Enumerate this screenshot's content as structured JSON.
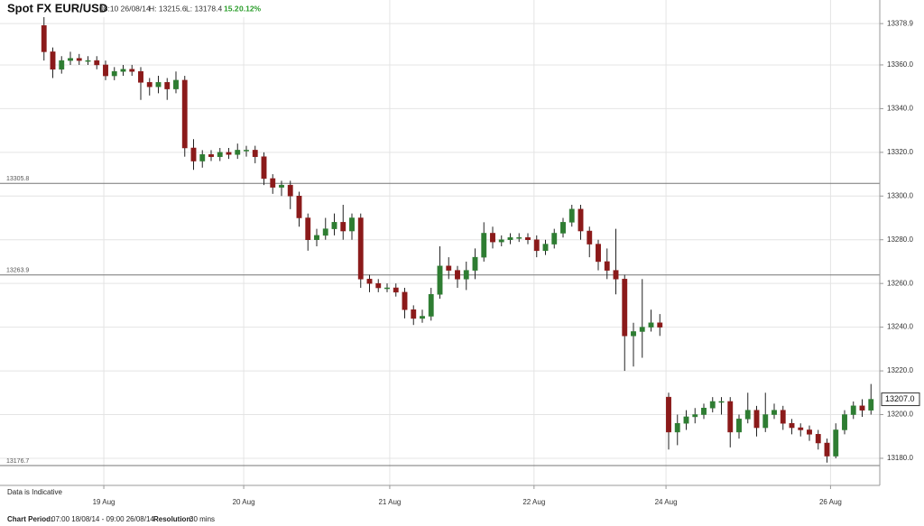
{
  "chart_data": {
    "type": "candlestick",
    "title": "Spot FX EUR/USD",
    "timestamp": "08:10 26/08/14",
    "high_text": "H: 13215.6",
    "low_text": "L: 13178.4",
    "change": "15.2",
    "change_percent": "0.12%",
    "note": "Data is Indicative",
    "footer": {
      "period_label": "Chart Period:",
      "period": "07:00 18/08/14 - 09:00 26/08/14",
      "resolution_label": "Resolution:",
      "resolution": "30 mins"
    },
    "up_color": "#2e7d32",
    "down_color": "#8b1a1a",
    "grid": true,
    "xlim": [
      0,
      100
    ],
    "ylim": [
      13167.6,
      13389.7
    ],
    "xticks": [
      {
        "value": 11.8,
        "label": "19 Aug"
      },
      {
        "value": 27.7,
        "label": "20 Aug"
      },
      {
        "value": 44.3,
        "label": "21 Aug"
      },
      {
        "value": 60.7,
        "label": "22 Aug"
      },
      {
        "value": 75.7,
        "label": "24 Aug"
      },
      {
        "value": 94.4,
        "label": "26 Aug"
      }
    ],
    "yticks": [
      {
        "value": 13180,
        "label": "13180.0"
      },
      {
        "value": 13200,
        "label": "13200.0"
      },
      {
        "value": 13220,
        "label": "13220.0"
      },
      {
        "value": 13240,
        "label": "13240.0"
      },
      {
        "value": 13260,
        "label": "13260.0"
      },
      {
        "value": 13280,
        "label": "13280.0"
      },
      {
        "value": 13300,
        "label": "13300.0"
      },
      {
        "value": 13320,
        "label": "13320.0"
      },
      {
        "value": 13340,
        "label": "13340.0"
      },
      {
        "value": 13360,
        "label": "13360.0"
      },
      13378.9
    ],
    "reference_lines": [
      13305.8,
      13263.9,
      13176.7
    ],
    "last_price": {
      "value": 13207,
      "label": "13207.0"
    },
    "x": [
      5,
      6,
      7,
      8,
      9,
      10,
      11,
      12,
      13,
      14,
      15,
      16,
      17,
      18,
      19,
      20,
      21,
      22,
      23,
      24,
      25,
      26,
      27,
      28,
      29,
      30,
      31,
      32,
      33,
      34,
      35,
      36,
      37,
      38,
      39,
      40,
      41,
      42,
      43,
      44,
      45,
      46,
      47,
      48,
      49,
      50,
      51,
      52,
      53,
      54,
      55,
      56,
      57,
      58,
      59,
      60,
      61,
      62,
      63,
      64,
      65,
      66,
      67,
      68,
      69,
      70,
      71,
      72,
      73,
      74,
      75,
      76,
      77,
      78,
      79,
      80,
      81,
      82,
      83,
      84,
      85,
      86,
      87,
      88,
      89,
      90,
      91,
      92,
      93,
      94,
      95,
      96,
      97,
      98,
      99
    ],
    "open": [
      13378,
      13366,
      13358,
      13362,
      13363,
      13362,
      13362,
      13360,
      13355,
      13357,
      13358,
      13357,
      13352,
      13350,
      13352,
      13349,
      13353,
      13322,
      13316,
      13319,
      13318,
      13320,
      13319,
      13321,
      13321,
      13318,
      13308,
      13304,
      13305,
      13300,
      13290,
      13280,
      13282,
      13285,
      13288,
      13284,
      13290,
      13262,
      13260,
      13258,
      13258,
      13256,
      13248,
      13244,
      13245,
      13255,
      13268,
      13266,
      13262,
      13266,
      13272,
      13283,
      13279,
      13280,
      13281,
      13281,
      13280,
      13275,
      13278,
      13283,
      13288,
      13294,
      13284,
      13278,
      13270,
      13266,
      13262,
      13236,
      13238,
      13240,
      13242,
      13208,
      13192,
      13196,
      13199,
      13200,
      13203,
      13206,
      13206,
      13192,
      13198,
      13202,
      13194,
      13200,
      13202,
      13196,
      13194,
      13193,
      13191,
      13187,
      13181,
      13193,
      13200,
      13204,
      13202
    ],
    "high": [
      13382,
      13368,
      13364,
      13366,
      13365,
      13364,
      13364,
      13362,
      13359,
      13360,
      13360,
      13359,
      13354,
      13355,
      13354,
      13357,
      13355,
      13326,
      13321,
      13321,
      13322,
      13322,
      13324,
      13323,
      13323,
      13320,
      13310,
      13307,
      13307,
      13302,
      13292,
      13285,
      13290,
      13292,
      13296,
      13292,
      13292,
      13264,
      13262,
      13260,
      13260,
      13258,
      13250,
      13248,
      13258,
      13277,
      13272,
      13268,
      13270,
      13276,
      13288,
      13286,
      13282,
      13283,
      13283,
      13283,
      13282,
      13280,
      13285,
      13290,
      13296,
      13296,
      13286,
      13280,
      13276,
      13285,
      13264,
      13242,
      13262,
      13248,
      13246,
      13210,
      13200,
      13202,
      13203,
      13205,
      13208,
      13208,
      13208,
      13200,
      13210,
      13204,
      13210,
      13205,
      13204,
      13198,
      13196,
      13195,
      13193,
      13189,
      13196,
      13202,
      13206,
      13207,
      13214
    ],
    "low": [
      13362,
      13354,
      13356,
      13360,
      13360,
      13360,
      13358,
      13353,
      13353,
      13355,
      13355,
      13344,
      13346,
      13347,
      13344,
      13347,
      13318,
      13312,
      13313,
      13316,
      13316,
      13317,
      13317,
      13318,
      13315,
      13305,
      13301,
      13300,
      13294,
      13286,
      13275,
      13277,
      13280,
      13282,
      13280,
      13280,
      13258,
      13256,
      13256,
      13256,
      13254,
      13244,
      13241,
      13242,
      13243,
      13253,
      13262,
      13258,
      13257,
      13262,
      13270,
      13276,
      13277,
      13278,
      13279,
      13278,
      13272,
      13273,
      13276,
      13281,
      13286,
      13280,
      13272,
      13266,
      13262,
      13255,
      13220,
      13222,
      13226,
      13238,
      13236,
      13184,
      13186,
      13193,
      13196,
      13198,
      13201,
      13200,
      13185,
      13189,
      13196,
      13190,
      13192,
      13198,
      13193,
      13191,
      13190,
      13188,
      13184,
      13178,
      13180,
      13191,
      13198,
      13199,
      13200
    ],
    "close": [
      13366,
      13358,
      13362,
      13363,
      13362,
      13362,
      13360,
      13355,
      13357,
      13358,
      13357,
      13352,
      13350,
      13352,
      13349,
      13353,
      13322,
      13316,
      13319,
      13318,
      13320,
      13319,
      13321,
      13321,
      13318,
      13308,
      13304,
      13305,
      13300,
      13290,
      13280,
      13282,
      13285,
      13288,
      13284,
      13290,
      13262,
      13260,
      13258,
      13258,
      13256,
      13248,
      13244,
      13245,
      13255,
      13268,
      13266,
      13262,
      13266,
      13272,
      13283,
      13279,
      13280,
      13281,
      13281,
      13280,
      13275,
      13278,
      13283,
      13288,
      13294,
      13284,
      13278,
      13270,
      13266,
      13262,
      13236,
      13238,
      13240,
      13242,
      13240,
      13192,
      13196,
      13199,
      13200,
      13203,
      13206,
      13206,
      13192,
      13198,
      13202,
      13194,
      13200,
      13202,
      13196,
      13194,
      13193,
      13191,
      13187,
      13181,
      13193,
      13200,
      13204,
      13202,
      13207
    ]
  }
}
